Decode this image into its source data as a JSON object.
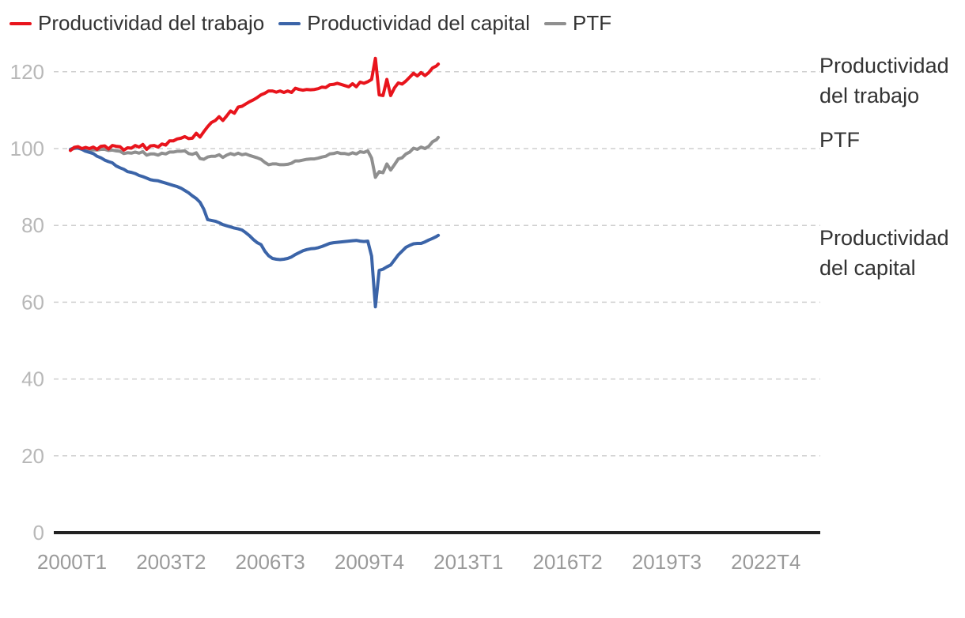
{
  "chart_data": {
    "type": "line",
    "title": "",
    "xlabel": "",
    "ylabel": "",
    "ylim": [
      0,
      125
    ],
    "yticks": [
      0,
      20,
      40,
      60,
      80,
      100,
      120
    ],
    "grid": true,
    "legend_position": "top-left",
    "x_tick_labels": [
      "2000T1",
      "2003T2",
      "2006T3",
      "2009T4",
      "2013T1",
      "2016T2",
      "2019T3",
      "2022T4"
    ],
    "n_periods": 97,
    "series": [
      {
        "name": "Productividad del trabajo",
        "end_label": "Productividad del trabajo",
        "color": "#e8141c",
        "points": [
          [
            0,
            99.5
          ],
          [
            2,
            100.3
          ],
          [
            4,
            100.5
          ],
          [
            6,
            100
          ],
          [
            8,
            100.3
          ],
          [
            10,
            100
          ],
          [
            12,
            100.4
          ],
          [
            14,
            99.8
          ],
          [
            16,
            100.6
          ],
          [
            18,
            100.7
          ],
          [
            20,
            99.9
          ],
          [
            22,
            100.8
          ],
          [
            24,
            100.6
          ],
          [
            26,
            100.5
          ],
          [
            28,
            99.6
          ],
          [
            30,
            100.2
          ],
          [
            32,
            100.1
          ],
          [
            34,
            100.8
          ],
          [
            36,
            100.4
          ],
          [
            38,
            101.1
          ],
          [
            40,
            99.8
          ],
          [
            42,
            100.7
          ],
          [
            44,
            100.8
          ],
          [
            46,
            100.4
          ],
          [
            48,
            101.2
          ],
          [
            50,
            100.9
          ],
          [
            52,
            102
          ],
          [
            54,
            102
          ],
          [
            56,
            102.5
          ],
          [
            58,
            102.7
          ],
          [
            60,
            103.1
          ],
          [
            62,
            102.6
          ],
          [
            64,
            102.7
          ],
          [
            66,
            104
          ],
          [
            68,
            103
          ],
          [
            70,
            104.4
          ],
          [
            72,
            105.7
          ],
          [
            74,
            106.8
          ],
          [
            76,
            107.3
          ],
          [
            78,
            108.3
          ],
          [
            80,
            107.3
          ],
          [
            82,
            108.5
          ],
          [
            84,
            109.8
          ],
          [
            86,
            109.2
          ],
          [
            88,
            110.8
          ],
          [
            90,
            111
          ],
          [
            92,
            111.6
          ],
          [
            94,
            112.2
          ],
          [
            96,
            112.7
          ],
          [
            98,
            113.3
          ],
          [
            100,
            114
          ],
          [
            102,
            114.4
          ],
          [
            104,
            115
          ],
          [
            106,
            115
          ],
          [
            108,
            114.7
          ],
          [
            110,
            115
          ],
          [
            112,
            114.6
          ],
          [
            114,
            115
          ],
          [
            116,
            114.6
          ],
          [
            118,
            115.7
          ],
          [
            120,
            115.4
          ],
          [
            122,
            115.2
          ],
          [
            124,
            115.4
          ],
          [
            126,
            115.3
          ],
          [
            128,
            115.4
          ],
          [
            130,
            115.6
          ],
          [
            132,
            116
          ],
          [
            134,
            115.9
          ],
          [
            136,
            116.6
          ],
          [
            138,
            116.7
          ],
          [
            140,
            117
          ],
          [
            142,
            116.7
          ],
          [
            144,
            116.4
          ],
          [
            146,
            116.1
          ],
          [
            148,
            116.9
          ],
          [
            150,
            116.1
          ],
          [
            152,
            117.3
          ],
          [
            154,
            117
          ],
          [
            156,
            117.4
          ],
          [
            158,
            118
          ],
          [
            160,
            123.5
          ],
          [
            162,
            114
          ],
          [
            164,
            113.8
          ],
          [
            166,
            118
          ],
          [
            168,
            113.8
          ],
          [
            170,
            115.8
          ],
          [
            172,
            117.1
          ],
          [
            174,
            116.8
          ],
          [
            176,
            117.6
          ],
          [
            178,
            118.6
          ],
          [
            180,
            119.6
          ],
          [
            182,
            118.9
          ],
          [
            184,
            119.8
          ],
          [
            186,
            119
          ],
          [
            188,
            119.8
          ],
          [
            190,
            121
          ],
          [
            192,
            121.5
          ],
          [
            193,
            122
          ]
        ]
      },
      {
        "name": "Productividad del capital",
        "end_label": "Productividad del capital",
        "color": "#3b64a8",
        "points": [
          [
            0,
            99.8
          ],
          [
            2,
            100.2
          ],
          [
            4,
            100.1
          ],
          [
            6,
            99.8
          ],
          [
            8,
            99.3
          ],
          [
            10,
            99
          ],
          [
            12,
            98.7
          ],
          [
            14,
            98
          ],
          [
            16,
            97.6
          ],
          [
            18,
            97
          ],
          [
            20,
            96.6
          ],
          [
            22,
            96.3
          ],
          [
            24,
            95.5
          ],
          [
            26,
            95
          ],
          [
            28,
            94.6
          ],
          [
            30,
            94
          ],
          [
            32,
            93.8
          ],
          [
            34,
            93.5
          ],
          [
            36,
            93
          ],
          [
            38,
            92.7
          ],
          [
            40,
            92.3
          ],
          [
            42,
            91.9
          ],
          [
            44,
            91.7
          ],
          [
            46,
            91.6
          ],
          [
            48,
            91.3
          ],
          [
            50,
            91
          ],
          [
            52,
            90.7
          ],
          [
            54,
            90.4
          ],
          [
            56,
            90.1
          ],
          [
            58,
            89.7
          ],
          [
            60,
            89.1
          ],
          [
            62,
            88.5
          ],
          [
            64,
            87.7
          ],
          [
            66,
            87
          ],
          [
            68,
            86
          ],
          [
            70,
            84.2
          ],
          [
            72,
            81.5
          ],
          [
            74,
            81.3
          ],
          [
            76,
            81.1
          ],
          [
            78,
            80.7
          ],
          [
            80,
            80.2
          ],
          [
            82,
            79.9
          ],
          [
            84,
            79.6
          ],
          [
            86,
            79.3
          ],
          [
            88,
            79.1
          ],
          [
            90,
            78.8
          ],
          [
            92,
            78.1
          ],
          [
            94,
            77.3
          ],
          [
            96,
            76.3
          ],
          [
            98,
            75.5
          ],
          [
            100,
            75
          ],
          [
            102,
            73.3
          ],
          [
            104,
            72.1
          ],
          [
            106,
            71.4
          ],
          [
            108,
            71.2
          ],
          [
            110,
            71.1
          ],
          [
            112,
            71.2
          ],
          [
            114,
            71.4
          ],
          [
            116,
            71.8
          ],
          [
            118,
            72.4
          ],
          [
            120,
            72.9
          ],
          [
            122,
            73.4
          ],
          [
            124,
            73.7
          ],
          [
            126,
            73.9
          ],
          [
            128,
            74
          ],
          [
            130,
            74.2
          ],
          [
            132,
            74.5
          ],
          [
            134,
            74.9
          ],
          [
            136,
            75.3
          ],
          [
            138,
            75.5
          ],
          [
            140,
            75.6
          ],
          [
            142,
            75.7
          ],
          [
            144,
            75.8
          ],
          [
            146,
            75.9
          ],
          [
            148,
            76
          ],
          [
            150,
            76.1
          ],
          [
            152,
            75.9
          ],
          [
            154,
            75.8
          ],
          [
            156,
            75.9
          ],
          [
            158,
            72
          ],
          [
            160,
            58.8
          ],
          [
            162,
            68.3
          ],
          [
            164,
            68.6
          ],
          [
            166,
            69.2
          ],
          [
            168,
            69.7
          ],
          [
            170,
            71
          ],
          [
            172,
            72.3
          ],
          [
            174,
            73.3
          ],
          [
            176,
            74.3
          ],
          [
            178,
            74.8
          ],
          [
            180,
            75.2
          ],
          [
            182,
            75.3
          ],
          [
            184,
            75.3
          ],
          [
            186,
            75.7
          ],
          [
            188,
            76.2
          ],
          [
            190,
            76.6
          ],
          [
            192,
            77.1
          ],
          [
            193,
            77.4
          ]
        ]
      },
      {
        "name": "PTF",
        "end_label": "PTF",
        "color": "#8f8f8f",
        "points": [
          [
            0,
            99.7
          ],
          [
            2,
            100
          ],
          [
            4,
            100.2
          ],
          [
            6,
            99.9
          ],
          [
            8,
            99.6
          ],
          [
            10,
            99.5
          ],
          [
            12,
            99.7
          ],
          [
            14,
            99.6
          ],
          [
            16,
            99.8
          ],
          [
            18,
            99.8
          ],
          [
            20,
            99.5
          ],
          [
            22,
            99.6
          ],
          [
            24,
            99.4
          ],
          [
            26,
            99.3
          ],
          [
            28,
            98.7
          ],
          [
            30,
            98.9
          ],
          [
            32,
            98.8
          ],
          [
            34,
            99.1
          ],
          [
            36,
            98.8
          ],
          [
            38,
            99.2
          ],
          [
            40,
            98.3
          ],
          [
            42,
            98.6
          ],
          [
            44,
            98.6
          ],
          [
            46,
            98.3
          ],
          [
            48,
            98.8
          ],
          [
            50,
            98.6
          ],
          [
            52,
            99.1
          ],
          [
            54,
            99.1
          ],
          [
            56,
            99.3
          ],
          [
            58,
            99.3
          ],
          [
            60,
            99.4
          ],
          [
            62,
            98.7
          ],
          [
            64,
            98.5
          ],
          [
            66,
            98.9
          ],
          [
            68,
            97.4
          ],
          [
            70,
            97.2
          ],
          [
            72,
            97.8
          ],
          [
            74,
            98
          ],
          [
            76,
            98
          ],
          [
            78,
            98.4
          ],
          [
            80,
            97.7
          ],
          [
            82,
            98.3
          ],
          [
            84,
            98.7
          ],
          [
            86,
            98.4
          ],
          [
            88,
            98.8
          ],
          [
            90,
            98.4
          ],
          [
            92,
            98.6
          ],
          [
            94,
            98.2
          ],
          [
            96,
            97.9
          ],
          [
            98,
            97.6
          ],
          [
            100,
            97.2
          ],
          [
            102,
            96.4
          ],
          [
            104,
            95.8
          ],
          [
            106,
            96
          ],
          [
            108,
            96
          ],
          [
            110,
            95.8
          ],
          [
            112,
            95.8
          ],
          [
            114,
            95.9
          ],
          [
            116,
            96.2
          ],
          [
            118,
            96.8
          ],
          [
            120,
            96.8
          ],
          [
            122,
            97
          ],
          [
            124,
            97.2
          ],
          [
            126,
            97.3
          ],
          [
            128,
            97.3
          ],
          [
            130,
            97.5
          ],
          [
            132,
            97.8
          ],
          [
            134,
            98
          ],
          [
            136,
            98.6
          ],
          [
            138,
            98.7
          ],
          [
            140,
            99
          ],
          [
            142,
            98.7
          ],
          [
            144,
            98.7
          ],
          [
            146,
            98.5
          ],
          [
            148,
            98.9
          ],
          [
            150,
            98.6
          ],
          [
            152,
            99.2
          ],
          [
            154,
            99
          ],
          [
            156,
            99.4
          ],
          [
            158,
            97.5
          ],
          [
            160,
            92.5
          ],
          [
            162,
            94
          ],
          [
            164,
            93.7
          ],
          [
            166,
            96
          ],
          [
            168,
            94.4
          ],
          [
            170,
            95.8
          ],
          [
            172,
            97.3
          ],
          [
            174,
            97.6
          ],
          [
            176,
            98.6
          ],
          [
            178,
            99.1
          ],
          [
            180,
            100.1
          ],
          [
            182,
            99.8
          ],
          [
            184,
            100.4
          ],
          [
            186,
            100
          ],
          [
            188,
            100.6
          ],
          [
            190,
            101.8
          ],
          [
            192,
            102.3
          ],
          [
            193,
            102.9
          ]
        ]
      }
    ]
  }
}
